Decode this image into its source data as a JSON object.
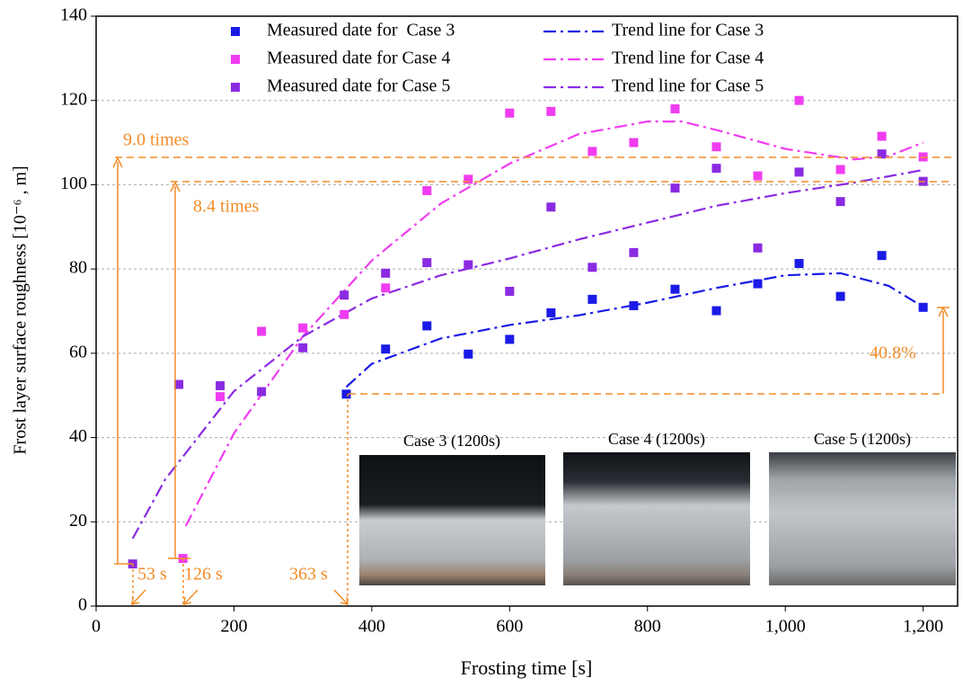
{
  "chart_data": {
    "type": "scatter",
    "x_label": "Frosting time [s]",
    "y_label": "Frost layer surface roughness [10⁻⁶ , m]",
    "xlim": [
      0,
      1250
    ],
    "xticks": [
      0,
      200,
      400,
      600,
      800,
      {
        "value": 1000,
        "label": "1,000"
      },
      {
        "value": 1200,
        "label": "1,200"
      }
    ],
    "ylim": [
      0,
      140
    ],
    "yticks": [
      0,
      20,
      40,
      60,
      80,
      100,
      120,
      140
    ],
    "grid": true,
    "series": [
      {
        "name": "Measured date for  Case 3",
        "color": "#1a1ae6",
        "x": [
          363,
          420,
          480,
          540,
          600,
          660,
          720,
          780,
          840,
          900,
          960,
          1020,
          1080,
          1140,
          1200
        ],
        "values": [
          50.3,
          61,
          66.5,
          59.8,
          63.3,
          69.6,
          72.8,
          71.3,
          75.2,
          70.1,
          76.5,
          81.3,
          73.5,
          83.2,
          70.9
        ]
      },
      {
        "name": "Measured date for Case 4",
        "color": "#f03cf0",
        "x": [
          126,
          180,
          240,
          300,
          360,
          420,
          480,
          540,
          600,
          660,
          720,
          780,
          840,
          900,
          960,
          1020,
          1080,
          1140,
          1200
        ],
        "values": [
          11.3,
          49.7,
          65.2,
          66,
          69.2,
          75.5,
          98.6,
          101.3,
          117,
          117.4,
          107.9,
          110,
          118,
          109,
          102.1,
          120,
          103.6,
          111.5,
          106.6
        ]
      },
      {
        "name": "Measured date for Case 5",
        "color": "#8a2be2",
        "x": [
          53,
          120,
          180,
          240,
          300,
          360,
          420,
          480,
          540,
          600,
          660,
          720,
          780,
          840,
          900,
          960,
          1020,
          1080,
          1140,
          1200
        ],
        "values": [
          10,
          52.6,
          52.3,
          50.9,
          61.3,
          73.8,
          79,
          81.5,
          81,
          74.7,
          94.7,
          80.4,
          83.9,
          99.2,
          103.9,
          85,
          103,
          96,
          107.3,
          100.8
        ]
      }
    ],
    "trend_lines": [
      {
        "name": "Trend line for Case 3",
        "color": "#1a1ae6",
        "x": [
          363,
          400,
          500,
          600,
          700,
          800,
          900,
          1000,
          1080,
          1150,
          1200
        ],
        "values": [
          52,
          57.5,
          63.5,
          66.7,
          69,
          72,
          75.5,
          78.5,
          79,
          76,
          71
        ]
      },
      {
        "name": "Trend line for Case 4",
        "color": "#f03cf0",
        "x": [
          130,
          200,
          300,
          400,
          500,
          600,
          700,
          800,
          850,
          900,
          1000,
          1100,
          1150,
          1200
        ],
        "values": [
          19,
          41,
          64,
          82,
          95.5,
          105,
          112,
          115,
          115,
          113,
          108.5,
          106,
          106.8,
          110
        ]
      },
      {
        "name": "Trend line for Case 5",
        "color": "#8a2be2",
        "x": [
          53,
          100,
          200,
          300,
          400,
          500,
          600,
          700,
          800,
          900,
          1000,
          1100,
          1200
        ],
        "values": [
          16,
          30,
          51,
          64,
          73,
          78.5,
          82.5,
          87,
          91,
          95,
          98,
          100.5,
          103.5
        ]
      }
    ],
    "annotations": [
      "9.0 times",
      "8.4 times",
      "40.8%",
      "53 s",
      "126 s",
      "363 s"
    ],
    "image_captions": [
      "Case 3 (1200s)",
      "Case 4 (1200s)",
      "Case 5 (1200s)"
    ]
  }
}
